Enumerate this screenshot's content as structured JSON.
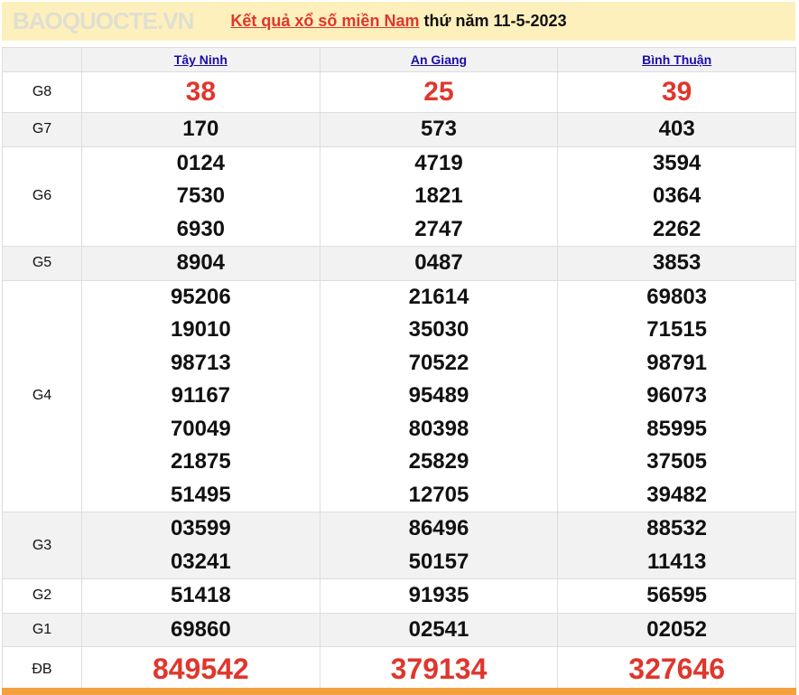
{
  "title": {
    "link": "Kết quả xổ số miền Nam",
    "rest": " thứ năm 11-5-2023"
  },
  "provinces": [
    "Tây Ninh",
    "An Giang",
    "Bình Thuận"
  ],
  "rows": [
    {
      "label": "G8",
      "values": [
        [
          "38"
        ],
        [
          "25"
        ],
        [
          "39"
        ]
      ]
    },
    {
      "label": "G7",
      "values": [
        [
          "170"
        ],
        [
          "573"
        ],
        [
          "403"
        ]
      ]
    },
    {
      "label": "G6",
      "values": [
        [
          "0124",
          "7530",
          "6930"
        ],
        [
          "4719",
          "1821",
          "2747"
        ],
        [
          "3594",
          "0364",
          "2262"
        ]
      ]
    },
    {
      "label": "G5",
      "values": [
        [
          "8904"
        ],
        [
          "0487"
        ],
        [
          "3853"
        ]
      ]
    },
    {
      "label": "G4",
      "values": [
        [
          "95206",
          "19010",
          "98713",
          "91167",
          "70049",
          "21875",
          "51495"
        ],
        [
          "21614",
          "35030",
          "70522",
          "95489",
          "80398",
          "25829",
          "12705"
        ],
        [
          "69803",
          "71515",
          "98791",
          "96073",
          "85995",
          "37505",
          "39482"
        ]
      ]
    },
    {
      "label": "G3",
      "values": [
        [
          "03599",
          "03241"
        ],
        [
          "86496",
          "50157"
        ],
        [
          "88532",
          "11413"
        ]
      ]
    },
    {
      "label": "G2",
      "values": [
        [
          "51418"
        ],
        [
          "91935"
        ],
        [
          "56595"
        ]
      ]
    },
    {
      "label": "G1",
      "values": [
        [
          "69860"
        ],
        [
          "02541"
        ],
        [
          "02052"
        ]
      ]
    },
    {
      "label": "ĐB",
      "values": [
        [
          "849542"
        ],
        [
          "379134"
        ],
        [
          "327646"
        ]
      ]
    }
  ],
  "watermark": "BAOQUOCTE.VN",
  "colors": {
    "accent": "#e0362c",
    "header_bg": "#fdf0bd",
    "link": "#1a0dab",
    "footer_bar": "#f4a03d"
  }
}
